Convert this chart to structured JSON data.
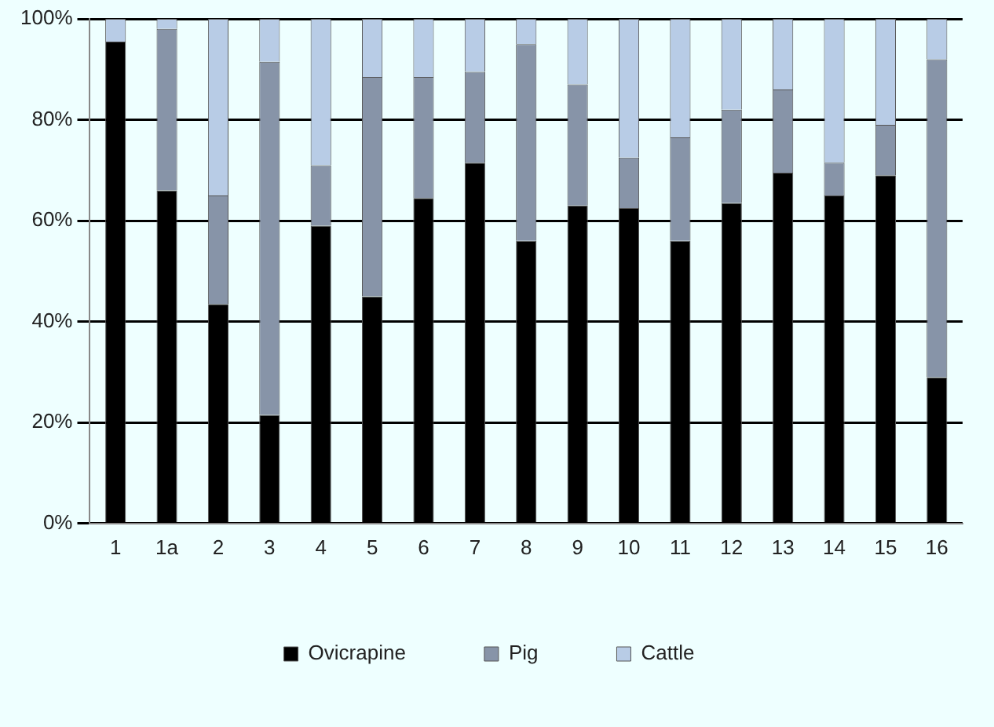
{
  "chart_data": {
    "type": "bar",
    "stacked": true,
    "categories": [
      "1",
      "1a",
      "2",
      "3",
      "4",
      "5",
      "6",
      "7",
      "8",
      "9",
      "10",
      "11",
      "12",
      "13",
      "14",
      "15",
      "16"
    ],
    "series": [
      {
        "name": "Ovicrapine",
        "color": "#000000",
        "values": [
          95.5,
          66,
          43.5,
          21.5,
          59,
          45,
          64.5,
          71.5,
          56,
          63,
          62.5,
          56,
          63.5,
          69.5,
          65,
          69,
          29
        ]
      },
      {
        "name": "Pig",
        "color": "#8794a8",
        "values": [
          0,
          32,
          21.5,
          70,
          12,
          43.5,
          24,
          18,
          39,
          24,
          10,
          20.5,
          18.5,
          16.5,
          6.5,
          10,
          63
        ]
      },
      {
        "name": "Cattle",
        "color": "#b8cce6",
        "values": [
          4.5,
          2,
          35,
          8.5,
          29,
          11.5,
          11.5,
          10.5,
          5,
          13,
          27.5,
          23.5,
          18,
          14,
          28.5,
          21,
          8
        ]
      }
    ],
    "ylim": [
      0,
      100
    ],
    "yticks": [
      {
        "value": 0,
        "label": "0%"
      },
      {
        "value": 20,
        "label": "20%"
      },
      {
        "value": 40,
        "label": "40%"
      },
      {
        "value": 60,
        "label": "60%"
      },
      {
        "value": 80,
        "label": "80%"
      },
      {
        "value": 100,
        "label": "100%"
      }
    ],
    "grid": "y",
    "legend": "bottom"
  }
}
